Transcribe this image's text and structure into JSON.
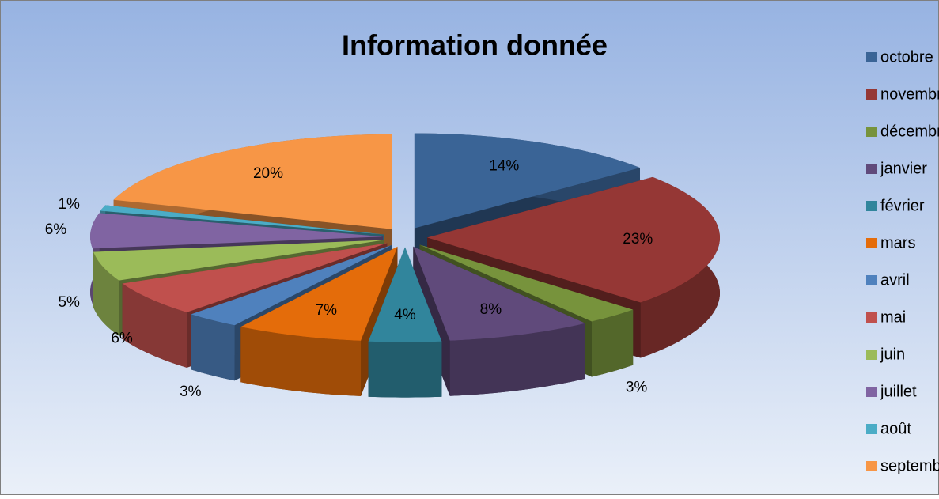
{
  "chart_data": {
    "type": "pie3d",
    "title": "Information donnée",
    "categories": [
      "octobre",
      "novembre",
      "décembre",
      "janvier",
      "février",
      "mars",
      "avril",
      "mai",
      "juin",
      "juillet",
      "août",
      "septembre"
    ],
    "values": [
      14,
      23,
      3,
      8,
      4,
      7,
      3,
      6,
      5,
      6,
      1,
      20
    ],
    "value_labels": [
      "14%",
      "23%",
      "3%",
      "8%",
      "4%",
      "7%",
      "3%",
      "6%",
      "5%",
      "6%",
      "1%",
      "20%"
    ],
    "colors": [
      "#3a6496",
      "#953735",
      "#77933c",
      "#604a7b",
      "#31859c",
      "#e46c0a",
      "#4f81bd",
      "#c0504d",
      "#9bbb59",
      "#8064a2",
      "#4bacc6",
      "#f79646"
    ],
    "legend": "right"
  }
}
